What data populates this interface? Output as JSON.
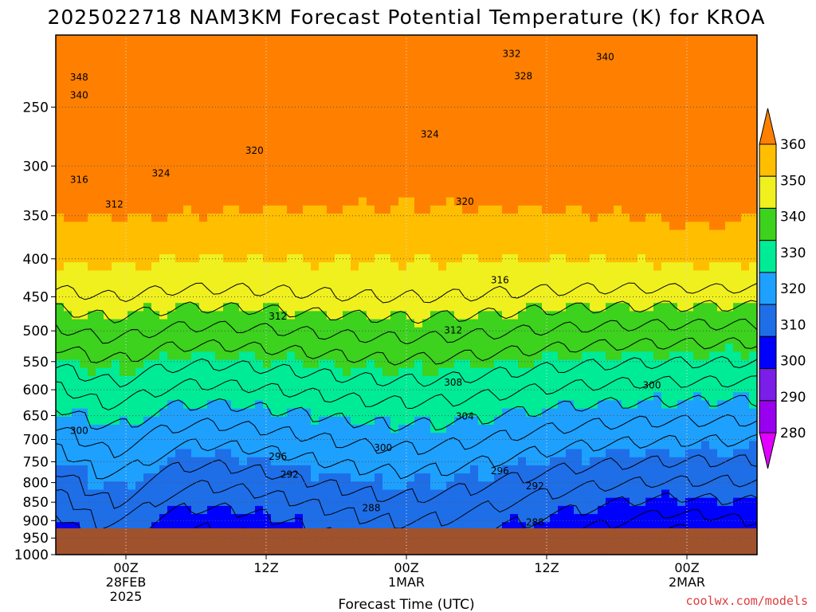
{
  "chart_data": {
    "type": "heatmap",
    "title": "2025022718 NAM3KM Forecast Potential Temperature (K) for KROA",
    "xlabel": "Forecast Time (UTC)",
    "ylabel": "",
    "y_scale": "log-pressure",
    "ylim": [
      1000,
      200
    ],
    "y_ticks": [
      250,
      300,
      350,
      400,
      450,
      500,
      550,
      600,
      650,
      700,
      750,
      800,
      850,
      900,
      950,
      1000
    ],
    "x_ticks": [
      {
        "hour": 6,
        "label": "00Z",
        "sub1": "28FEB",
        "sub2": "2025"
      },
      {
        "hour": 18,
        "label": "12Z",
        "sub1": "",
        "sub2": ""
      },
      {
        "hour": 30,
        "label": "00Z",
        "sub1": "1MAR",
        "sub2": ""
      },
      {
        "hour": 42,
        "label": "12Z",
        "sub1": "",
        "sub2": ""
      },
      {
        "hour": 54,
        "label": "00Z",
        "sub1": "2MAR",
        "sub2": ""
      }
    ],
    "xlim": [
      0,
      60
    ],
    "grid": true,
    "legend": "right",
    "colorbar_levels": [
      "280",
      "290",
      "300",
      "310",
      "320",
      "330",
      "340",
      "350",
      "360"
    ],
    "colorbar_colors": [
      "#e100ff",
      "#9a00f0",
      "#7a1ee8",
      "#0000ff",
      "#1e6ee8",
      "#1ea0ff",
      "#00eb96",
      "#3cd21e",
      "#f0f01e",
      "#ffbe00",
      "#ff8000"
    ],
    "ground_color": "#a0522d",
    "contour_labels": [
      {
        "value": "348",
        "hour": 2,
        "p": 228
      },
      {
        "value": "340",
        "hour": 2,
        "p": 241
      },
      {
        "value": "316",
        "hour": 2,
        "p": 313
      },
      {
        "value": "312",
        "hour": 5,
        "p": 338
      },
      {
        "value": "324",
        "hour": 9,
        "p": 307
      },
      {
        "value": "320",
        "hour": 17,
        "p": 286
      },
      {
        "value": "332",
        "hour": 39,
        "p": 212
      },
      {
        "value": "340",
        "hour": 47,
        "p": 214
      },
      {
        "value": "328",
        "hour": 40,
        "p": 227
      },
      {
        "value": "324",
        "hour": 32,
        "p": 272
      },
      {
        "value": "320",
        "hour": 35,
        "p": 335
      },
      {
        "value": "316",
        "hour": 38,
        "p": 427
      },
      {
        "value": "312",
        "hour": 19,
        "p": 478
      },
      {
        "value": "312",
        "hour": 34,
        "p": 499
      },
      {
        "value": "308",
        "hour": 34,
        "p": 587
      },
      {
        "value": "304",
        "hour": 35,
        "p": 652
      },
      {
        "value": "300",
        "hour": 2,
        "p": 681
      },
      {
        "value": "300",
        "hour": 28,
        "p": 718
      },
      {
        "value": "300",
        "hour": 51,
        "p": 592
      },
      {
        "value": "296",
        "hour": 19,
        "p": 738
      },
      {
        "value": "296",
        "hour": 38,
        "p": 772
      },
      {
        "value": "292",
        "hour": 20,
        "p": 780
      },
      {
        "value": "292",
        "hour": 41,
        "p": 809
      },
      {
        "value": "288",
        "hour": 27,
        "p": 866
      },
      {
        "value": "288",
        "hour": 41,
        "p": 905
      }
    ]
  },
  "credit": "coolwx.com/models"
}
